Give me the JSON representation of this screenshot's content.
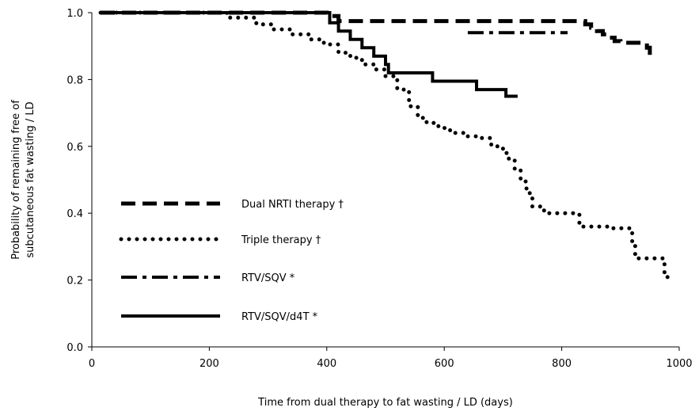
{
  "chart_data": {
    "type": "line",
    "step": true,
    "xlabel": "Time from dual therapy to fat wasting / LD  (days)",
    "ylabel_lines": [
      "Probability of remaining free of",
      "subcutaneous fat wasting / LD"
    ],
    "xlim": [
      0,
      1000
    ],
    "ylim": [
      0.0,
      1.0
    ],
    "x_ticks": [
      "0",
      "200",
      "400",
      "600",
      "800",
      "1000"
    ],
    "y_ticks": [
      "0.0",
      "0.2",
      "0.4",
      "0.6",
      "0.8",
      "1.0"
    ],
    "grid": false,
    "legend_position": "left-center",
    "line_color": "#000000",
    "series": [
      {
        "name": "Dual NRTI  therapy †",
        "style": "dashed",
        "x": [
          15,
          370,
          400,
          420,
          830,
          840,
          850,
          860,
          870,
          880,
          890,
          900,
          940,
          945,
          950,
          950
        ],
        "y": [
          1.0,
          1.0,
          0.99,
          0.975,
          0.975,
          0.965,
          0.955,
          0.945,
          0.935,
          0.925,
          0.915,
          0.91,
          0.91,
          0.895,
          0.88,
          0.865
        ]
      },
      {
        "name": "Triple therapy †",
        "style": "dotted",
        "x": [
          15,
          190,
          230,
          280,
          310,
          340,
          370,
          395,
          420,
          440,
          460,
          480,
          500,
          520,
          540,
          555,
          570,
          590,
          610,
          640,
          660,
          680,
          700,
          710,
          720,
          730,
          740,
          750,
          770,
          810,
          830,
          880,
          910,
          920,
          925,
          960,
          975,
          980
        ],
        "y": [
          1.0,
          1.0,
          0.985,
          0.965,
          0.95,
          0.935,
          0.92,
          0.905,
          0.88,
          0.865,
          0.845,
          0.83,
          0.81,
          0.77,
          0.72,
          0.685,
          0.67,
          0.655,
          0.64,
          0.63,
          0.625,
          0.6,
          0.58,
          0.56,
          0.53,
          0.495,
          0.46,
          0.42,
          0.4,
          0.4,
          0.36,
          0.355,
          0.355,
          0.305,
          0.265,
          0.265,
          0.22,
          0.195
        ]
      },
      {
        "name": "RTV/SQV *",
        "style": "dashdot",
        "x": [
          640,
          810
        ],
        "y": [
          0.94,
          0.94
        ]
      },
      {
        "name": "RTV/SQV/d4T *",
        "style": "solid",
        "x": [
          15,
          395,
          405,
          420,
          440,
          460,
          480,
          500,
          505,
          580,
          655,
          705,
          725
        ],
        "y": [
          1.0,
          1.0,
          0.97,
          0.945,
          0.92,
          0.895,
          0.87,
          0.845,
          0.82,
          0.795,
          0.77,
          0.75,
          0.75
        ]
      }
    ]
  }
}
